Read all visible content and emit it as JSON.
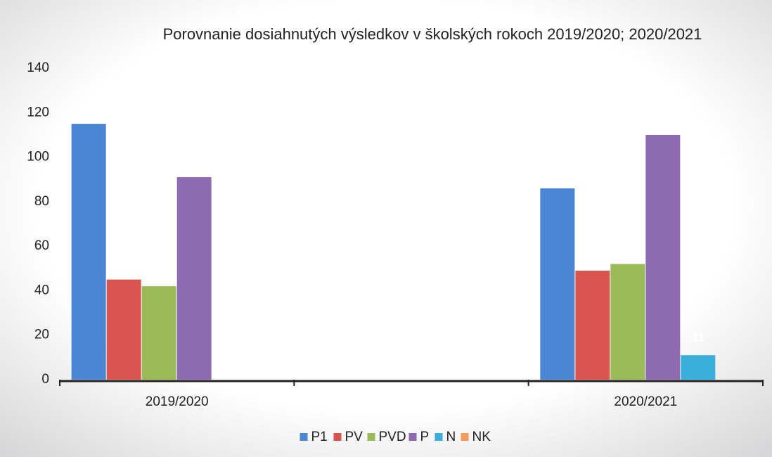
{
  "chart_data": {
    "type": "bar",
    "title": "Porovnanie dosiahnutých výsledkov v školských rokoch 2019/2020; 2020/2021",
    "categories": [
      "2019/2020",
      null,
      "2020/2021"
    ],
    "series": [
      {
        "name": "P1",
        "color": "#4a86d4",
        "values": [
          115,
          null,
          86
        ],
        "value_labels": [
          "115",
          null,
          null
        ]
      },
      {
        "name": "PV",
        "color": "#d9534f",
        "values": [
          45,
          null,
          49
        ],
        "value_labels": [
          "45",
          null,
          null
        ]
      },
      {
        "name": "PVD",
        "color": "#9bbb59",
        "values": [
          42,
          null,
          52
        ]
      },
      {
        "name": "P",
        "color": "#8e6bb0",
        "values": [
          91,
          null,
          110
        ],
        "value_labels": [
          null,
          null,
          "110"
        ]
      },
      {
        "name": "N",
        "color": "#3aaedc",
        "values": [
          0,
          null,
          11
        ],
        "value_labels": [
          null,
          null,
          "11"
        ]
      },
      {
        "name": "NK",
        "color": "#f59a5a",
        "values": [
          0,
          null,
          0
        ]
      }
    ],
    "ylim": [
      0,
      140
    ],
    "yticks": [
      0,
      20,
      40,
      60,
      80,
      100,
      120,
      140
    ],
    "grid": false,
    "legend": "bottom"
  }
}
